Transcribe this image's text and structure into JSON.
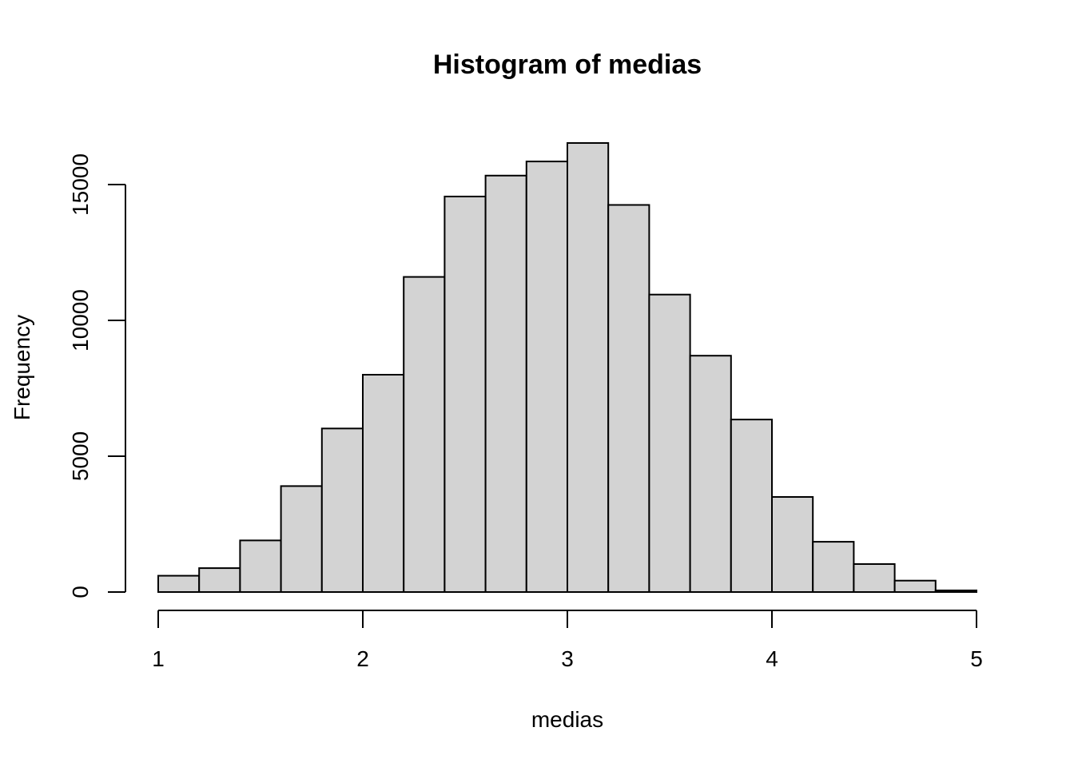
{
  "chart_data": {
    "type": "bar",
    "title": "Histogram of medias",
    "xlabel": "medias",
    "ylabel": "Frequency",
    "bar_fill": "#d3d3d3",
    "bar_stroke": "#000000",
    "xlim": [
      1,
      5
    ],
    "ylim": [
      0,
      16500
    ],
    "bins": [
      {
        "start": 1.0,
        "end": 1.2,
        "count": 600
      },
      {
        "start": 1.2,
        "end": 1.4,
        "count": 880
      },
      {
        "start": 1.4,
        "end": 1.6,
        "count": 1900
      },
      {
        "start": 1.6,
        "end": 1.8,
        "count": 3900
      },
      {
        "start": 1.8,
        "end": 2.0,
        "count": 6020
      },
      {
        "start": 2.0,
        "end": 2.2,
        "count": 8000
      },
      {
        "start": 2.2,
        "end": 2.4,
        "count": 11600
      },
      {
        "start": 2.4,
        "end": 2.6,
        "count": 14560
      },
      {
        "start": 2.6,
        "end": 2.8,
        "count": 15330
      },
      {
        "start": 2.8,
        "end": 3.0,
        "count": 15850
      },
      {
        "start": 3.0,
        "end": 3.2,
        "count": 16530
      },
      {
        "start": 3.2,
        "end": 3.4,
        "count": 14250
      },
      {
        "start": 3.4,
        "end": 3.6,
        "count": 10950
      },
      {
        "start": 3.6,
        "end": 3.8,
        "count": 8700
      },
      {
        "start": 3.8,
        "end": 4.0,
        "count": 6350
      },
      {
        "start": 4.0,
        "end": 4.2,
        "count": 3500
      },
      {
        "start": 4.2,
        "end": 4.4,
        "count": 1850
      },
      {
        "start": 4.4,
        "end": 4.6,
        "count": 1030
      },
      {
        "start": 4.6,
        "end": 4.8,
        "count": 420
      },
      {
        "start": 4.8,
        "end": 5.0,
        "count": 60
      }
    ],
    "x_ticks": [
      1,
      2,
      3,
      4,
      5
    ],
    "y_ticks": [
      0,
      5000,
      10000,
      15000
    ],
    "grid": false
  }
}
